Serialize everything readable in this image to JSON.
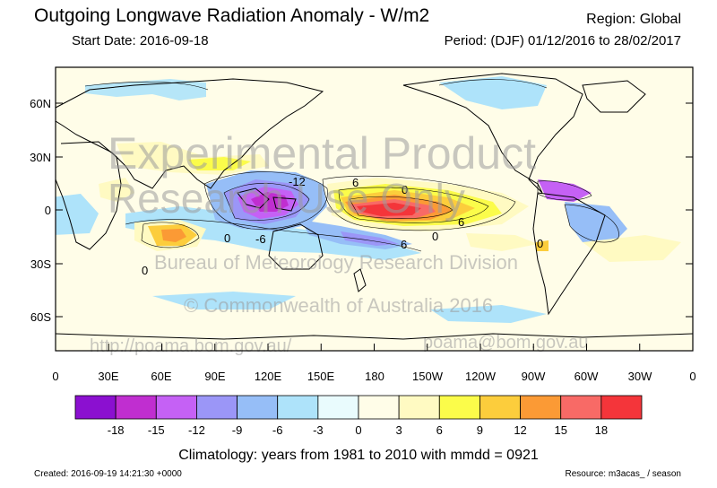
{
  "header": {
    "title": "Outgoing Longwave Radiation Anomaly - W/m2",
    "region": "Region: Global",
    "start_date": "Start Date: 2016-09-18",
    "period": "Period: (DJF) 01/12/2016 to 28/02/2017"
  },
  "map": {
    "y_ticks": [
      "60N",
      "30N",
      "0",
      "30S",
      "60S"
    ],
    "x_ticks": [
      "0",
      "30E",
      "60E",
      "90E",
      "120E",
      "150E",
      "180",
      "150W",
      "120W",
      "90W",
      "60W",
      "30W",
      "0"
    ],
    "contour_labels": [
      "-12",
      "6",
      "0",
      "6",
      "-6",
      "6",
      "0",
      "0",
      "0",
      "0"
    ],
    "watermarks": {
      "line1": "Experimental Product",
      "line2": "Research Use Only",
      "line3": "Bureau of Meteorology Research Division",
      "line4": "© Commonwealth of Australia 2016",
      "line5": "http://poama.bom.gov.au/",
      "line6": "poama@bom.gov.au"
    }
  },
  "colorbar": {
    "colors": [
      "#8b10d0",
      "#c02ed0",
      "#c561f5",
      "#9b96f7",
      "#96bef7",
      "#aee3fa",
      "#e9fbfd",
      "#fffde8",
      "#fffac2",
      "#fbfc4a",
      "#fccd3c",
      "#fb9a35",
      "#f86a66",
      "#f4353a"
    ],
    "labels": [
      "-18",
      "-15",
      "-12",
      "-9",
      "-6",
      "-3",
      "0",
      "3",
      "6",
      "9",
      "12",
      "15",
      "18"
    ]
  },
  "footer": {
    "climatology": "Climatology: years from 1981 to 2010 with mmdd = 0921",
    "created": "Created: 2016-09-19 14:21:30 +0000",
    "resource": "Resource: m3acas_ / season"
  }
}
